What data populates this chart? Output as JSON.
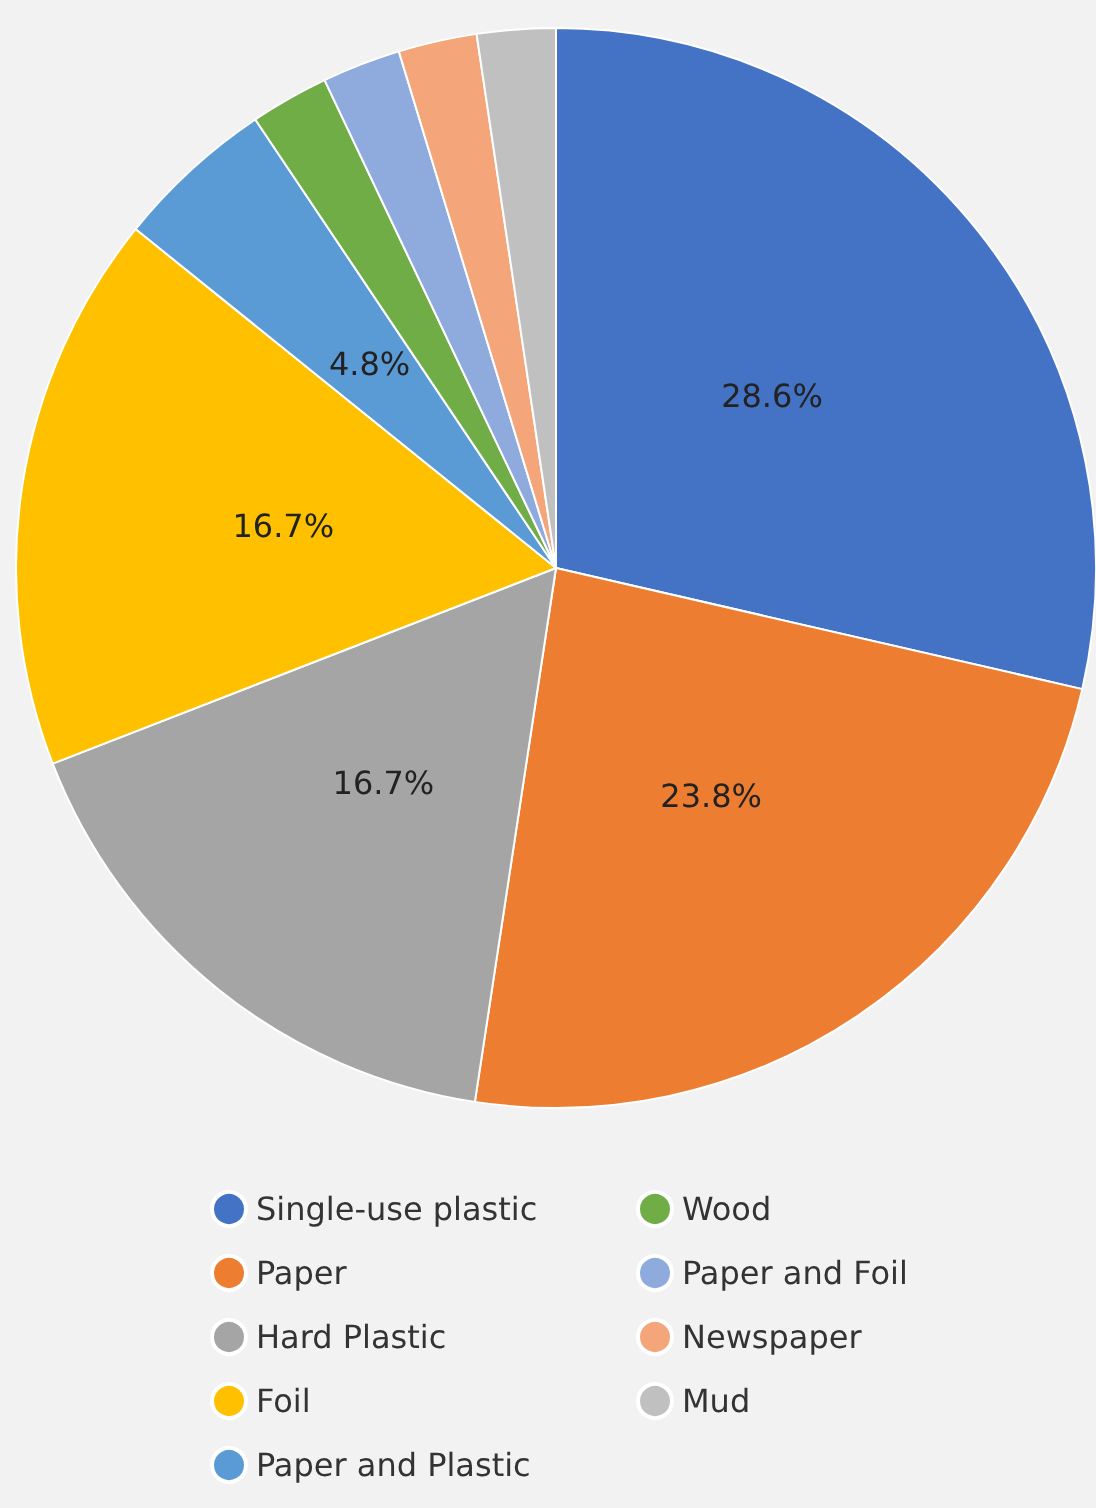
{
  "chart_data": {
    "type": "pie",
    "categories": [
      "Single-use plastic",
      "Paper",
      "Hard Plastic",
      "Foil",
      "Paper and Plastic",
      "Wood",
      "Paper and Foil",
      "Newspaper",
      "Mud"
    ],
    "values": [
      28.6,
      23.8,
      16.7,
      16.7,
      4.8,
      2.35,
      2.35,
      2.35,
      2.35
    ],
    "value_labels": [
      "28.6%",
      "23.8%",
      "16.7%",
      "16.7%",
      "4.8%",
      null,
      null,
      null,
      null
    ],
    "colors": [
      "#4472c4",
      "#ed7d31",
      "#a5a5a5",
      "#ffc000",
      "#5b9bd5",
      "#70ad47",
      "#8faadc",
      "#f4a57a",
      "#c0c0c0"
    ],
    "legend": "bottom"
  }
}
